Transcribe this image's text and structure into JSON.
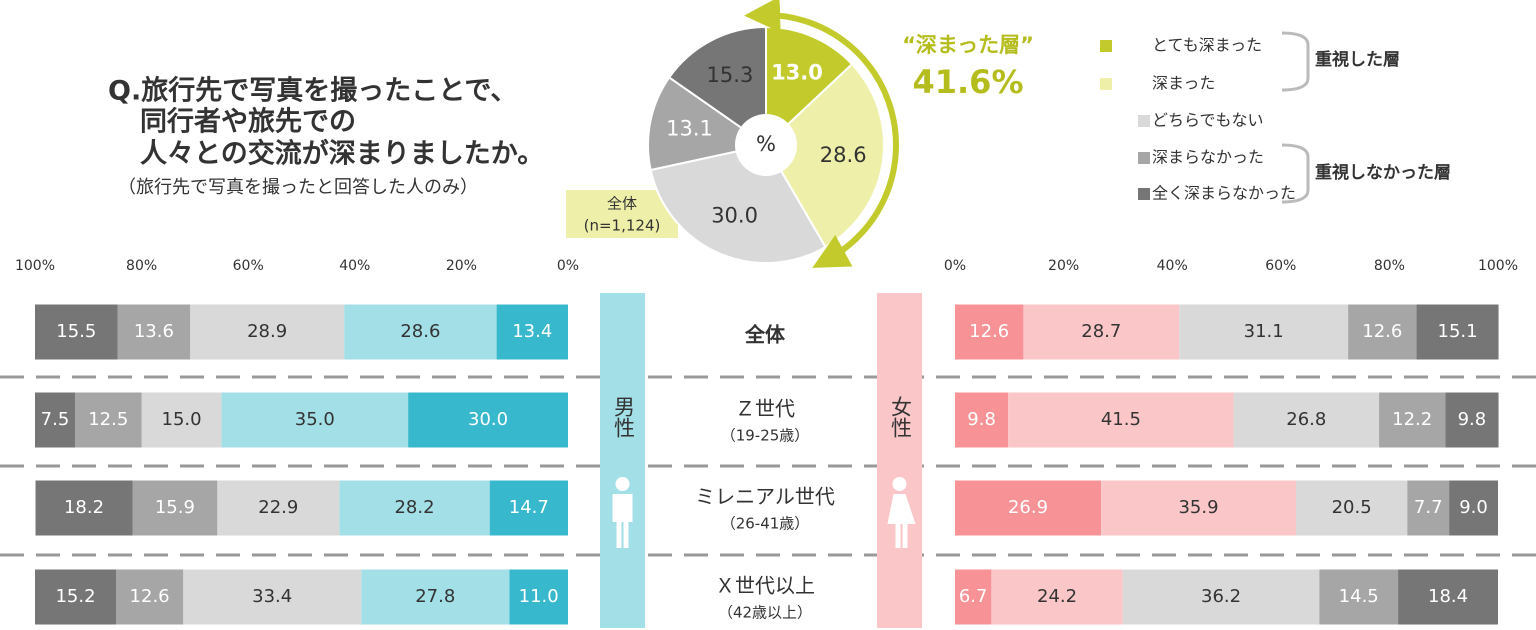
{
  "title": [
    "Q.旅行先で写真を撮ったことで、",
    "同行者や旅先での",
    "人々との交流が深まりましたか。"
  ],
  "subtitle": "（旅行先で写真を撮ったと回答した人のみ）",
  "legend_groups": [
    "重視した層",
    "重視しなかった層"
  ],
  "chart_data": [
    {
      "type": "pie",
      "label": [
        "全体",
        "(n=1,124)"
      ],
      "center_label": "%",
      "annotation": [
        "“深まった層”",
        "41.6%"
      ],
      "categories": [
        "とても深まった",
        "深まった",
        "どちらでもない",
        "深まらなかった",
        "全く深まらなかった"
      ],
      "values": [
        13.0,
        28.6,
        30.0,
        13.1,
        15.3
      ],
      "value_labels": [
        "13.0",
        "28.6",
        "30.0",
        "13.1",
        "15.3"
      ],
      "colors": [
        "#c3cb2c",
        "#eef0a9",
        "#d9d9d9",
        "#a6a6a6",
        "#767676"
      ],
      "label_colors": [
        "#ffffff",
        "#333333",
        "#333333",
        "#ffffff",
        "#333333"
      ]
    },
    {
      "type": "bar",
      "orientation": "horizontal",
      "stacked": true,
      "categories": [
        {
          "name": "全体"
        },
        {
          "name": "Ｚ世代",
          "sub": "（19-25歳）"
        },
        {
          "name": "ミレニアル世代",
          "sub": "（26-41歳）"
        },
        {
          "name": "Ｘ世代以上",
          "sub": "（42歳以上）"
        }
      ],
      "panels": [
        {
          "name": "男性",
          "color": "#a3dfe6",
          "xlim": [
            100,
            0
          ],
          "xticks": [
            {
              "value": 100,
              "label": "100%"
            },
            {
              "value": 80,
              "label": "80%"
            },
            {
              "value": 60,
              "label": "60%"
            },
            {
              "value": 40,
              "label": "40%"
            },
            {
              "value": 20,
              "label": "20%"
            },
            {
              "value": 0,
              "label": "0%"
            }
          ],
          "series": [
            {
              "color": "#37b8cc",
              "label_color": "#ffffff",
              "values": [
                13.4,
                30.0,
                14.7,
                11.0
              ],
              "value_labels": [
                "13.4",
                "30.0",
                "14.7",
                "11.0"
              ]
            },
            {
              "color": "#a3dfe6",
              "label_color": "#333333",
              "values": [
                28.6,
                35.0,
                28.2,
                27.8
              ],
              "value_labels": [
                "28.6",
                "35.0",
                "28.2",
                "27.8"
              ]
            },
            {
              "color": "#d9d9d9",
              "label_color": "#333333",
              "values": [
                28.9,
                15.0,
                22.9,
                33.4
              ],
              "value_labels": [
                "28.9",
                "15.0",
                "22.9",
                "33.4"
              ]
            },
            {
              "color": "#a6a6a6",
              "label_color": "#ffffff",
              "values": [
                13.6,
                12.5,
                15.9,
                12.6
              ],
              "value_labels": [
                "13.6",
                "12.5",
                "15.9",
                "12.6"
              ]
            },
            {
              "color": "#767676",
              "label_color": "#ffffff",
              "values": [
                15.5,
                7.5,
                18.2,
                15.2
              ],
              "value_labels": [
                "15.5",
                "7.5",
                "18.2",
                "15.2"
              ]
            }
          ]
        },
        {
          "name": "女性",
          "color": "#fbc6c8",
          "xlim": [
            0,
            100
          ],
          "xticks": [
            {
              "value": 0,
              "label": "0%"
            },
            {
              "value": 20,
              "label": "20%"
            },
            {
              "value": 40,
              "label": "40%"
            },
            {
              "value": 60,
              "label": "60%"
            },
            {
              "value": 80,
              "label": "80%"
            },
            {
              "value": 100,
              "label": "100%"
            }
          ],
          "series": [
            {
              "color": "#f79397",
              "label_color": "#ffffff",
              "values": [
                12.6,
                9.8,
                26.9,
                6.7
              ],
              "value_labels": [
                "12.6",
                "9.8",
                "26.9",
                "6.7"
              ]
            },
            {
              "color": "#fbc6c8",
              "label_color": "#333333",
              "values": [
                28.7,
                41.5,
                35.9,
                24.2
              ],
              "value_labels": [
                "28.7",
                "41.5",
                "35.9",
                "24.2"
              ]
            },
            {
              "color": "#d9d9d9",
              "label_color": "#333333",
              "values": [
                31.1,
                26.8,
                20.5,
                36.2
              ],
              "value_labels": [
                "31.1",
                "26.8",
                "20.5",
                "36.2"
              ]
            },
            {
              "color": "#a6a6a6",
              "label_color": "#ffffff",
              "values": [
                12.6,
                12.2,
                7.7,
                14.5
              ],
              "value_labels": [
                "12.6",
                "12.2",
                "7.7",
                "14.5"
              ]
            },
            {
              "color": "#767676",
              "label_color": "#ffffff",
              "values": [
                15.1,
                9.8,
                9.0,
                18.4
              ],
              "value_labels": [
                "15.1",
                "9.8",
                "9.0",
                "18.4"
              ]
            }
          ]
        }
      ]
    }
  ]
}
